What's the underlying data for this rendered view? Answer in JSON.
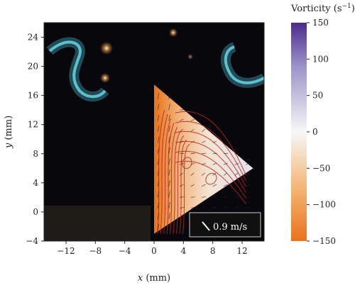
{
  "chart_data": {
    "type": "heatmap",
    "xlabel_var": "x",
    "xlabel_unit": " (mm)",
    "ylabel_var": "y",
    "ylabel_unit": " (mm)",
    "x_ticks": [
      -12,
      -8,
      -4,
      0,
      4,
      8,
      12
    ],
    "y_ticks": [
      -4,
      0,
      4,
      8,
      12,
      16,
      20,
      24
    ],
    "xlim": [
      -15,
      15
    ],
    "ylim": [
      -4,
      26
    ],
    "colorbar": {
      "title": "Vorticity (s",
      "title_sup": "−1",
      "title_end": ")",
      "ticks": [
        150,
        100,
        50,
        0,
        -50,
        -100,
        -150
      ],
      "range": [
        -150,
        150
      ],
      "colors": {
        "high": "#4b2a8c",
        "mid": "#f7f7f7",
        "low": "#e8731a"
      }
    },
    "reference_vector": {
      "label": "0.9 m/s"
    },
    "triangle_region": {
      "vertices": [
        [
          0,
          -3
        ],
        [
          0,
          17.5
        ],
        [
          13.5,
          6
        ]
      ]
    }
  }
}
